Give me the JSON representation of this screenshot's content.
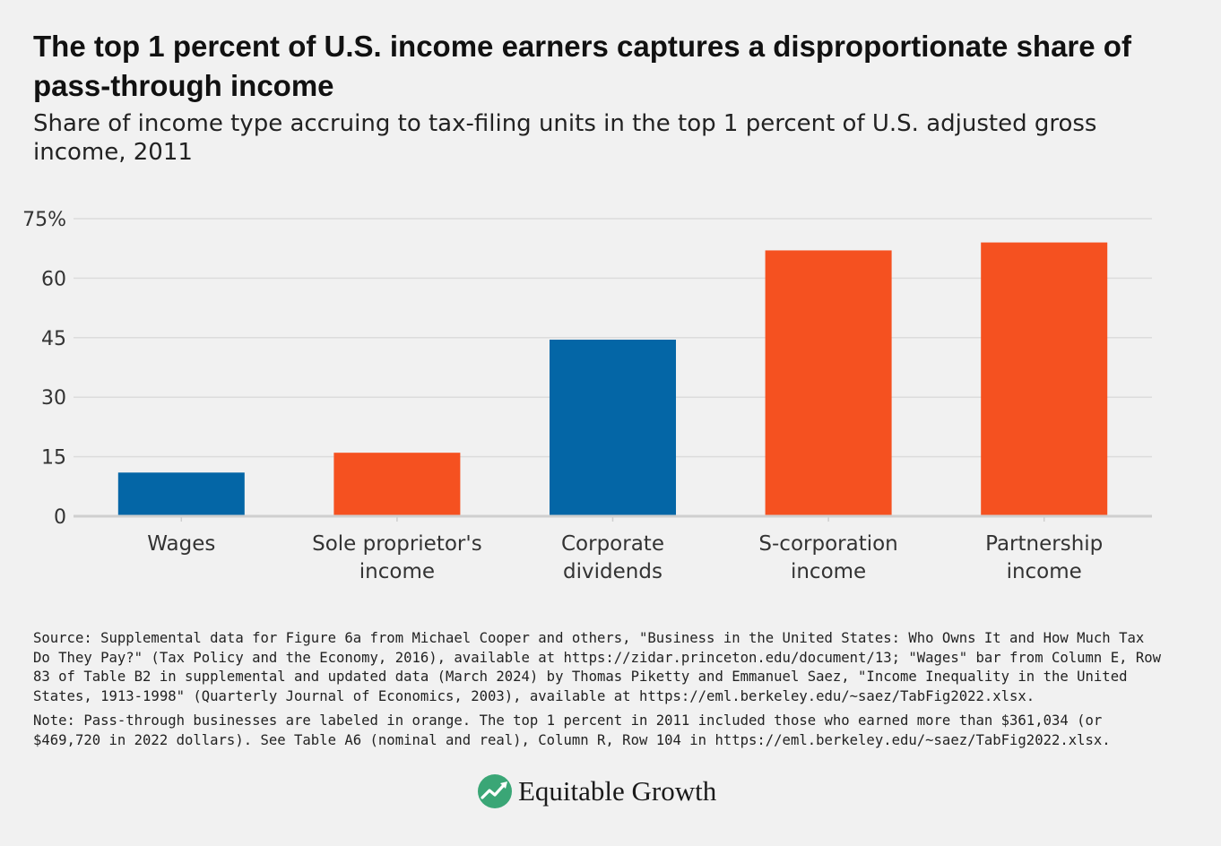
{
  "title": "The top 1 percent of U.S. income earners captures a disproportionate share of pass-through income",
  "subtitle": "Share of income type accruing to tax-filing units in the top 1 percent of U.S. adjusted gross income, 2011",
  "chart_data": {
    "type": "bar",
    "categories": [
      [
        "Wages"
      ],
      [
        "Sole proprietor's",
        "income"
      ],
      [
        "Corporate",
        "dividends"
      ],
      [
        "S-corporation",
        "income"
      ],
      [
        "Partnership",
        "income"
      ]
    ],
    "values": [
      11,
      16,
      44.5,
      67,
      69
    ],
    "colors": [
      "#0466a6",
      "#f55120",
      "#0466a6",
      "#f55120",
      "#f55120"
    ],
    "ylim": [
      0,
      75
    ],
    "yticks": [
      0,
      15,
      30,
      45,
      60,
      75
    ],
    "ytick_labels": [
      "0",
      "15",
      "30",
      "45",
      "60",
      "75%"
    ],
    "grid": true
  },
  "source": "Source: Supplemental data for Figure 6a from Michael Cooper and others, \"Business in the United States: Who Owns It and How Much Tax Do They Pay?\" (Tax Policy and the Economy, 2016), available at https://zidar.princeton.edu/document/13; \"Wages\" bar from Column E, Row 83 of Table B2 in supplemental and updated data (March 2024) by Thomas Piketty and Emmanuel Saez, \"Income Inequality in the United States, 1913-1998\" (Quarterly Journal of Economics, 2003), available at https://eml.berkeley.edu/~saez/TabFig2022.xlsx.",
  "note": "Note: Pass-through businesses are labeled in orange. The top 1 percent in 2011 included those who earned more than $361,034 (or $469,720 in 2022 dollars). See Table A6 (nominal and real), Column R, Row 104 in https://eml.berkeley.edu/~saez/TabFig2022.xlsx.",
  "logo": {
    "text": "Equitable Growth",
    "icon": "equitable-growth-logo-icon",
    "color": "#3aa676"
  }
}
